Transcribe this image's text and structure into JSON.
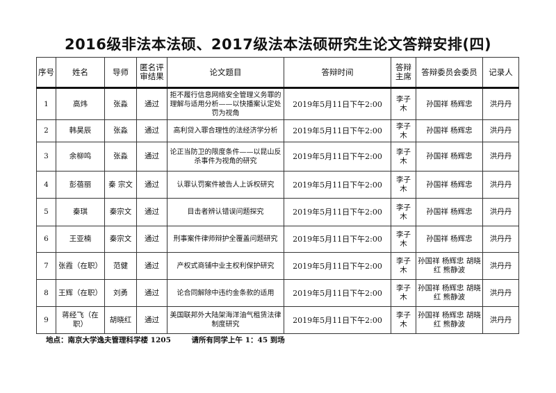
{
  "title": "2016级非法本法硕、2017级法本法硕研究生论文答辩安排(四)",
  "headers": [
    "序号",
    "姓名",
    "导师",
    "匿名评审结果",
    "论文题目",
    "答辩时间",
    "答辩主席",
    "答辩委员会委员",
    "记录人"
  ],
  "rows": [
    {
      "no": "1",
      "name": "高炜",
      "advisor": "张淼",
      "review": "通过",
      "topic": "拒不履行信息网络安全管理义务罪的理解与适用分析——以快播案认定处罚为视角",
      "time": "2019年5月11日下午2:00",
      "chair": "李子木",
      "committee": "孙国祥  杨辉忠",
      "recorder": "洪丹丹"
    },
    {
      "no": "2",
      "name": "韩昊辰",
      "advisor": "张淼",
      "review": "通过",
      "topic": "高利贷入罪合理性的法经济学分析",
      "time": "2019年5月11日下午2:00",
      "chair": "李子木",
      "committee": "孙国祥  杨辉忠",
      "recorder": "洪丹丹"
    },
    {
      "no": "3",
      "name": "余柳鸣",
      "advisor": "张淼",
      "review": "通过",
      "topic": "论正当防卫的限度条件——以昆山反杀事件为视角的研究",
      "time": "2019年5月11日下午2:00",
      "chair": "李子木",
      "committee": "孙国祥  杨辉忠",
      "recorder": "洪丹丹"
    },
    {
      "no": "4",
      "name": "彭蓓丽",
      "advisor": "秦 宗文",
      "review": "通过",
      "topic": "认罪认罚案件被告人上诉权研究",
      "time": "2019年5月11日下午2:00",
      "chair": "李子木",
      "committee": "孙国祥  杨辉忠",
      "recorder": "洪丹丹"
    },
    {
      "no": "5",
      "name": "秦琪",
      "advisor": "秦宗文",
      "review": "通过",
      "topic": "目击者辨认错误问题探究",
      "time": "2019年5月11日下午2:00",
      "chair": "李子木",
      "committee": "孙国祥  杨辉忠",
      "recorder": "洪丹丹"
    },
    {
      "no": "6",
      "name": "王亚楠",
      "advisor": "秦宗文",
      "review": "通过",
      "topic": "刑事案件律师辩护全覆盖问题研究",
      "time": "2019年5月11日下午2:00",
      "chair": "李子木",
      "committee": "孙国祥  杨辉忠",
      "recorder": "洪丹丹"
    },
    {
      "no": "7",
      "name": "张霞（在职）",
      "advisor": "范健",
      "review": "通过",
      "topic": "产权式商铺中业主权利保护研究",
      "time": "2019年5月11日下午2:00",
      "chair": "李子木",
      "committee": "孙国祥  杨辉忠 胡晓红  熊静波",
      "recorder": "洪丹丹"
    },
    {
      "no": "8",
      "name": "王辉（在职）",
      "advisor": "刘勇",
      "review": "通过",
      "topic": "论合同解除中违约金条款的适用",
      "time": "2019年5月11日下午2:00",
      "chair": "李子木",
      "committee": "孙国祥  杨辉忠 胡晓红  熊静波",
      "recorder": "洪丹丹"
    },
    {
      "no": "9",
      "name": "蒋经飞（在职）",
      "advisor": "胡晓红",
      "review": "通过",
      "topic": "美国联邦外大陆架海洋油气租赁法律制度研究",
      "time": "2019年5月11日下午2:00",
      "chair": "李子木",
      "committee": "孙国祥  杨辉忠 胡晓红  熊静波",
      "recorder": "洪丹丹"
    }
  ],
  "footer": {
    "location": "地点：南京大学逸夫管理科学楼 1205",
    "notice": "请所有同学上午 1：45 到场"
  }
}
